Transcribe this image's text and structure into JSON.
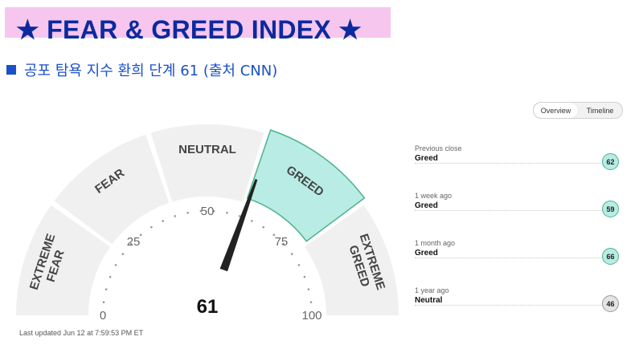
{
  "banner": {
    "title": "★ FEAR & GREED INDEX ★"
  },
  "subtitle": "공포 탐욕 지수 환희 단계 61 (출처 CNN)",
  "toggle": {
    "overview": "Overview",
    "timeline": "Timeline",
    "active": "overview"
  },
  "gauge": {
    "value": 61,
    "value_label": "61",
    "segments": [
      "EXTREME FEAR",
      "FEAR",
      "NEUTRAL",
      "GREED",
      "EXTREME GREED"
    ],
    "active_segment": "GREED",
    "ticks": [
      "0",
      "25",
      "50",
      "75",
      "100"
    ],
    "colors": {
      "segment": "#f0f0f0",
      "active_fill": "#b8ece4",
      "active_stroke": "#4fb28c",
      "needle": "#222222"
    }
  },
  "last_updated": "Last updated Jun 12 at 7:59:53 PM ET",
  "history": [
    {
      "label": "Previous close",
      "rating": "Greed",
      "value": "62",
      "color": "#b8ece4",
      "border": "#4fb28c"
    },
    {
      "label": "1 week ago",
      "rating": "Greed",
      "value": "59",
      "color": "#b8ece4",
      "border": "#4fb28c"
    },
    {
      "label": "1 month ago",
      "rating": "Greed",
      "value": "66",
      "color": "#b8ece4",
      "border": "#4fb28c"
    },
    {
      "label": "1 year ago",
      "rating": "Neutral",
      "value": "46",
      "color": "#e4e4e4",
      "border": "#999999"
    }
  ]
}
